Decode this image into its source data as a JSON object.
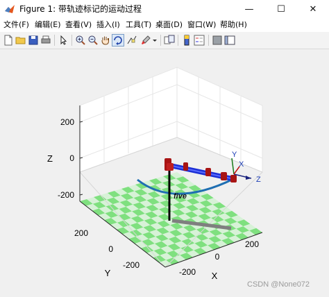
{
  "window": {
    "title": "Figure 1: 带轨迹标记的运动过程",
    "minimize_glyph": "—",
    "maximize_glyph": "☐",
    "close_glyph": "✕"
  },
  "menu": {
    "items": [
      {
        "label": "文件(F)"
      },
      {
        "label": "编辑(E)"
      },
      {
        "label": "查看(V)"
      },
      {
        "label": "插入(I)"
      },
      {
        "label": "工具(T)"
      },
      {
        "label": "桌面(D)"
      },
      {
        "label": "窗口(W)"
      },
      {
        "label": "帮助(H)"
      }
    ]
  },
  "toolbar": {
    "icons": [
      "new-figure-icon",
      "open-file-icon",
      "save-icon",
      "print-icon",
      "pointer-icon",
      "zoom-in-icon",
      "zoom-out-icon",
      "pan-hand-icon",
      "rotate-3d-icon",
      "data-cursor-icon",
      "brush-icon",
      "link-plot-icon",
      "colorbar-icon",
      "legend-icon",
      "hide-plot-tools-icon",
      "show-plot-tools-icon"
    ]
  },
  "plot": {
    "z_axis_label": "Z",
    "y_axis_label": "Y",
    "x_axis_label": "X",
    "z_ticks": [
      "200",
      "0",
      "-200"
    ],
    "y_ticks": [
      "200",
      "0",
      "-200"
    ],
    "x_ticks": [
      "-200",
      "0",
      "200"
    ],
    "robot_name": "five",
    "frame_labels": {
      "x": "X",
      "y": "Y",
      "z": "Z"
    },
    "colors": {
      "checker_green": "#7fe07f",
      "checker_light": "#d7f2d7",
      "trajectory": "#1f6fb2",
      "robot_link": "#1c2fd6",
      "robot_joint": "#a81414",
      "shadow": "#7f7f7f"
    }
  },
  "watermark": "CSDN @None072"
}
